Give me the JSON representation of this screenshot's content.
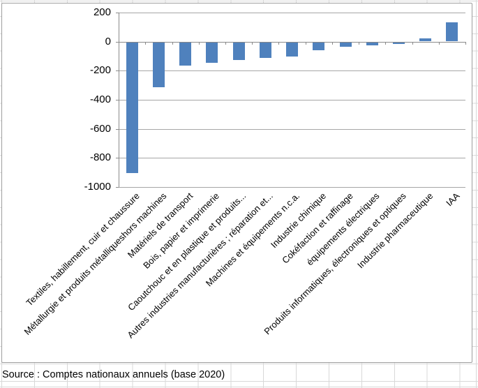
{
  "chart_data": {
    "type": "bar",
    "categories": [
      "Textiles, habillement, cuir et chaussure",
      "Métallurgie et produits métalliqueshors machines",
      "Matériels de transport",
      "Bois, papier et imprimerie",
      "Caoutchouc et en plastique et produits...",
      "Autres industries manufacturières ; réparation et...",
      "Machines et équipements n.c.a.",
      "Industrie chimique",
      "Cokéfaction et raffinage",
      "équipements électriques",
      "Produits informatiques, électroniques et optiques",
      "Industrie pharmaceutique",
      "IAA"
    ],
    "values": [
      -900,
      -310,
      -160,
      -140,
      -120,
      -110,
      -100,
      -55,
      -30,
      -20,
      -10,
      20,
      130
    ],
    "title": "",
    "xlabel": "",
    "ylabel": "",
    "ylim": [
      -1000,
      200
    ],
    "yticks": [
      200,
      0,
      -200,
      -400,
      -600,
      -800,
      -1000
    ],
    "ytick_labels": [
      "200",
      "0",
      "-200",
      "-400",
      "-600",
      "-800",
      "-1000"
    ],
    "grid": true,
    "legend": false,
    "bar_color": "#4f81bd",
    "gridline_color": "#a6a6a6",
    "axis_color": "#8a8a8a"
  },
  "source_note": "Source : Comptes nationaux annuels (base 2020)",
  "colors": {
    "bar": "#4f81bd",
    "gridline": "#a6a6a6",
    "axis": "#8a8a8a",
    "chart_border": "#9d9d9d",
    "sheet_grid": "#d8d8d8",
    "text": "#000000",
    "background": "#ffffff"
  }
}
